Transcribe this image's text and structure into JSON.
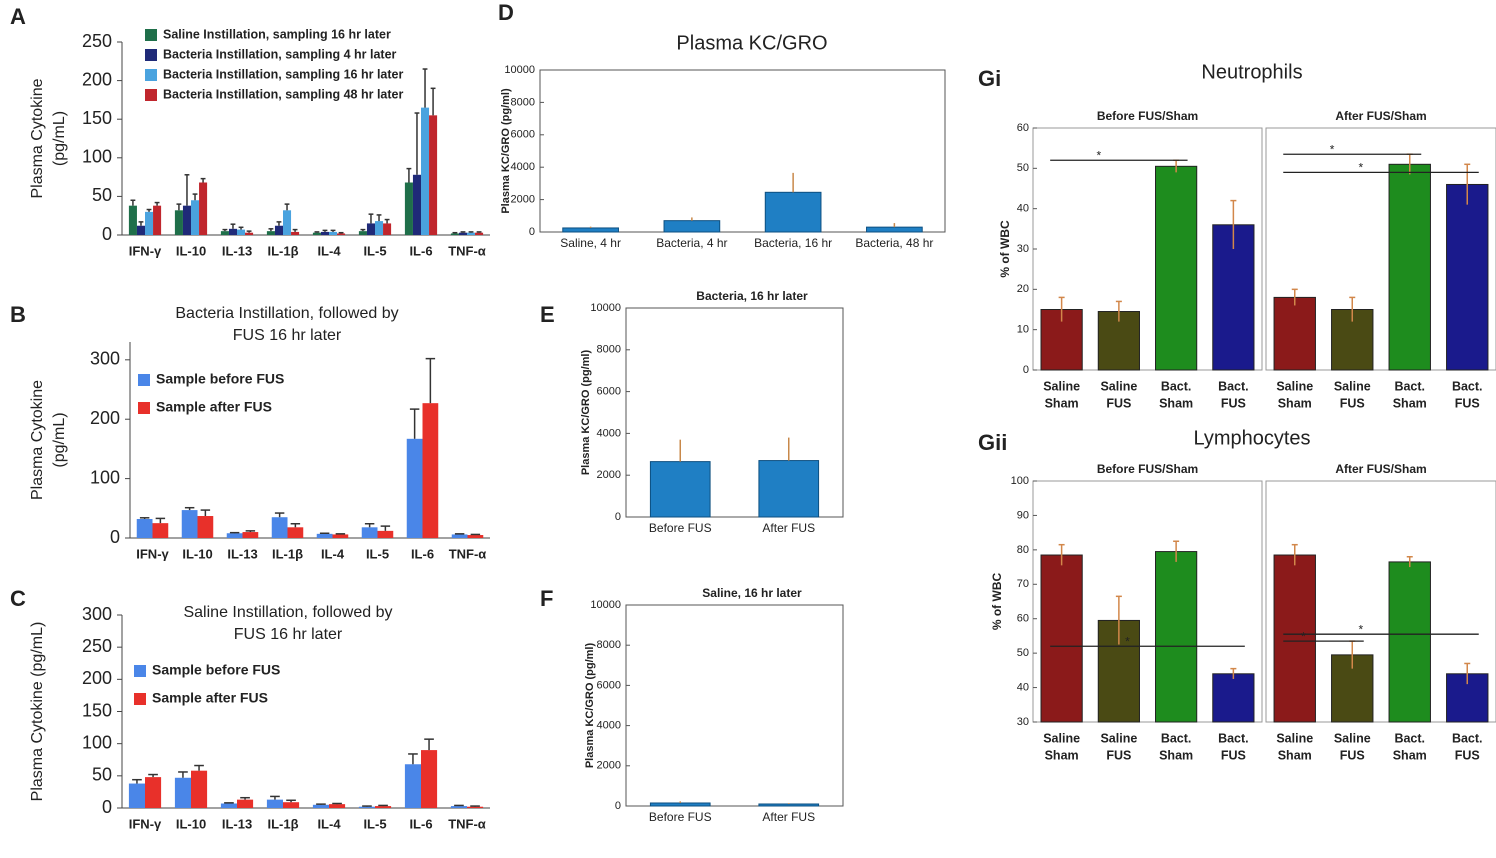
{
  "chart_data": [
    {
      "type": "grouped_bar",
      "label": "A",
      "ylabel": [
        "Plasma Cytokine",
        "(pg/mL)"
      ],
      "categories": [
        "IFN-γ",
        "IL-10",
        "IL-13",
        "IL-1β",
        "IL-4",
        "IL-5",
        "IL-6",
        "TNF-α"
      ],
      "ylim": [
        0,
        250
      ],
      "yticks": [
        0,
        50,
        100,
        150,
        200,
        250
      ],
      "series": [
        {
          "name": "Saline Instillation, sampling 16 hr later",
          "color": "#1f6f4a",
          "values": [
            38,
            32,
            5,
            5,
            3,
            5,
            68,
            2
          ],
          "errors": [
            7,
            8,
            2,
            3,
            1,
            2,
            18,
            1
          ]
        },
        {
          "name": "Bacteria Instillation, sampling 4 hr later",
          "color": "#1f2a78",
          "values": [
            12,
            38,
            8,
            12,
            4,
            15,
            78,
            3
          ],
          "errors": [
            5,
            40,
            6,
            5,
            2,
            12,
            80,
            1
          ]
        },
        {
          "name": "Bacteria Instillation, sampling 16 hr later",
          "color": "#4aa3df",
          "values": [
            30,
            45,
            7,
            32,
            4,
            18,
            165,
            3
          ],
          "errors": [
            3,
            8,
            3,
            8,
            2,
            8,
            50,
            1
          ]
        },
        {
          "name": "Bacteria Instillation, sampling 48 hr later",
          "color": "#c0262d",
          "values": [
            38,
            68,
            3,
            4,
            2,
            15,
            155,
            3
          ],
          "errors": [
            4,
            5,
            2,
            3,
            1,
            5,
            35,
            1
          ]
        }
      ]
    },
    {
      "type": "grouped_bar",
      "label": "B",
      "title": [
        "Bacteria Instillation,  followed by",
        "FUS 16 hr later"
      ],
      "ylabel": [
        "Plasma Cytokine",
        "(pg/mL)"
      ],
      "categories": [
        "IFN-γ",
        "IL-10",
        "IL-13",
        "IL-1β",
        "IL-4",
        "IL-5",
        "IL-6",
        "TNF-α"
      ],
      "ylim": [
        0,
        330
      ],
      "yticks": [
        0,
        100,
        200,
        300
      ],
      "series": [
        {
          "name": "Sample before FUS",
          "color": "#4a86e8",
          "values": [
            32,
            47,
            8,
            35,
            7,
            18,
            167,
            6
          ],
          "errors": [
            2,
            4,
            1,
            7,
            1,
            6,
            50,
            1
          ]
        },
        {
          "name": "Sample after FUS",
          "color": "#e8302a",
          "values": [
            25,
            37,
            10,
            18,
            6,
            12,
            227,
            5
          ],
          "errors": [
            8,
            10,
            2,
            6,
            1,
            8,
            75,
            1
          ]
        }
      ]
    },
    {
      "type": "grouped_bar",
      "label": "C",
      "title": [
        "Saline Instillation,  followed by",
        "FUS 16 hr later"
      ],
      "ylabel": [
        "Plasma Cytokine  (pg/mL)"
      ],
      "categories": [
        "IFN-γ",
        "IL-10",
        "IL-13",
        "IL-1β",
        "IL-4",
        "IL-5",
        "IL-6",
        "TNF-α"
      ],
      "ylim": [
        0,
        300
      ],
      "yticks": [
        0,
        50,
        100,
        150,
        200,
        250,
        300
      ],
      "series": [
        {
          "name": "Sample before FUS",
          "color": "#4a86e8",
          "values": [
            38,
            47,
            7,
            13,
            5,
            2,
            68,
            3
          ],
          "errors": [
            6,
            9,
            1,
            5,
            1,
            1,
            16,
            1
          ]
        },
        {
          "name": "Sample after FUS",
          "color": "#e8302a",
          "values": [
            48,
            58,
            13,
            9,
            6,
            3,
            90,
            2
          ],
          "errors": [
            4,
            8,
            3,
            3,
            1,
            1,
            17,
            1
          ]
        }
      ]
    },
    {
      "type": "bar",
      "label": "D",
      "title": "Plasma KC/GRO",
      "ylabel": "Plasma KC/GRO (pg/ml)",
      "color": "#1f7fc4",
      "categories": [
        "Saline, 4 hr",
        "Bacteria, 4 hr",
        "Bacteria, 16 hr",
        "Bacteria, 48 hr"
      ],
      "values": [
        250,
        700,
        2450,
        300
      ],
      "errors": [
        80,
        200,
        1200,
        250
      ],
      "ylim": [
        0,
        10000
      ],
      "yticks": [
        0,
        2000,
        4000,
        6000,
        8000,
        10000
      ]
    },
    {
      "type": "bar",
      "label": "E",
      "title": "Bacteria, 16 hr later",
      "ylabel": "Plasma KC/GRO (pg/ml)",
      "color": "#1f7fc4",
      "categories": [
        "Before FUS",
        "After FUS"
      ],
      "values": [
        2650,
        2700
      ],
      "errors": [
        1050,
        1100
      ],
      "ylim": [
        0,
        10000
      ],
      "yticks": [
        0,
        2000,
        4000,
        6000,
        8000,
        10000
      ]
    },
    {
      "type": "bar",
      "label": "F",
      "title": "Saline, 16 hr later",
      "ylabel": "Plasma KC/GRO (pg/ml)",
      "color": "#1f7fc4",
      "categories": [
        "Before FUS",
        "After FUS"
      ],
      "values": [
        150,
        100
      ],
      "errors": [
        80,
        40
      ],
      "ylim": [
        0,
        10000
      ],
      "yticks": [
        0,
        2000,
        4000,
        6000,
        8000,
        10000
      ]
    },
    {
      "type": "panel_bar",
      "label": "Gi",
      "title": "Neutrophils",
      "ylabel": "% of WBC",
      "categories": [
        [
          "Saline",
          "Sham"
        ],
        [
          "Saline",
          "FUS"
        ],
        [
          "Bact.",
          "Sham"
        ],
        [
          "Bact.",
          "FUS"
        ]
      ],
      "colors": [
        "#8b1a1a",
        "#4a4a14",
        "#1e8c1e",
        "#1a1a8c"
      ],
      "ylim": [
        0,
        60
      ],
      "yticks": [
        0,
        10,
        20,
        30,
        40,
        50,
        60
      ],
      "panels": [
        {
          "title": "Before FUS/Sham",
          "values": [
            15,
            14.5,
            50.5,
            36
          ],
          "errors": [
            3,
            2.5,
            1.5,
            6
          ],
          "annotations": [
            {
              "text": "*",
              "y": 52,
              "from": 0,
              "to": 2
            }
          ]
        },
        {
          "title": "After FUS/Sham",
          "values": [
            18,
            15,
            51,
            46
          ],
          "errors": [
            2,
            3,
            2.5,
            5
          ],
          "annotations": [
            {
              "text": "*",
              "y": 53.5,
              "from": 0,
              "to": 2
            },
            {
              "text": "*",
              "y": 49,
              "from": 0,
              "to": 3
            }
          ]
        }
      ]
    },
    {
      "type": "panel_bar",
      "label": "Gii",
      "title": "Lymphocytes",
      "ylabel": "% of WBC",
      "categories": [
        [
          "Saline",
          "Sham"
        ],
        [
          "Saline",
          "FUS"
        ],
        [
          "Bact.",
          "Sham"
        ],
        [
          "Bact.",
          "FUS"
        ]
      ],
      "colors": [
        "#8b1a1a",
        "#4a4a14",
        "#1e8c1e",
        "#1a1a8c"
      ],
      "ylim": [
        30,
        100
      ],
      "yticks": [
        30,
        40,
        50,
        60,
        70,
        80,
        90,
        100
      ],
      "panels": [
        {
          "title": "Before FUS/Sham",
          "values": [
            78.5,
            59.5,
            79.5,
            44
          ],
          "errors": [
            3,
            7,
            3,
            1.5
          ],
          "annotations": [
            {
              "text": "*",
              "y": 52,
              "from": 0,
              "to": 3
            }
          ]
        },
        {
          "title": "After FUS/Sham",
          "values": [
            78.5,
            49.5,
            76.5,
            44
          ],
          "errors": [
            3,
            4,
            1.5,
            3
          ],
          "annotations": [
            {
              "text": "*",
              "y": 55.5,
              "from": 0,
              "to": 3
            },
            {
              "text": "*",
              "y": 53.5,
              "from": 0,
              "to": 1
            }
          ]
        }
      ]
    }
  ]
}
